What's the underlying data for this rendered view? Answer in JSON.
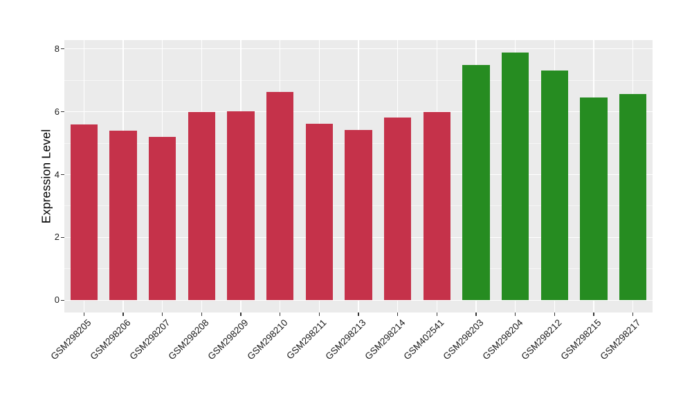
{
  "figure": {
    "background": "#FFFFFF",
    "panel_background": "#EBEBEB",
    "grid_major_color": "#FFFFFF",
    "grid_minor_color": "#F6F6F6",
    "axis_text_color": "#1A1A1A",
    "axis_title_color": "#000000",
    "tick_mark_color": "#333333"
  },
  "chart_data": {
    "type": "bar",
    "title": "",
    "xlabel": "",
    "ylabel": "Expression Level",
    "categories": [
      "GSM298205",
      "GSM298206",
      "GSM298207",
      "GSM298208",
      "GSM298209",
      "GSM298210",
      "GSM298211",
      "GSM298213",
      "GSM298214",
      "GSM402541",
      "GSM298203",
      "GSM298204",
      "GSM298212",
      "GSM298215",
      "GSM298217"
    ],
    "values": [
      5.6,
      5.4,
      5.21,
      6.0,
      6.02,
      6.63,
      5.61,
      5.43,
      5.82,
      6.0,
      7.49,
      7.89,
      7.32,
      6.45,
      6.57
    ],
    "groups": [
      "red",
      "red",
      "red",
      "red",
      "red",
      "red",
      "red",
      "red",
      "red",
      "red",
      "green",
      "green",
      "green",
      "green",
      "green"
    ],
    "group_colors": {
      "red": "#C5324A",
      "green": "#268C21"
    },
    "yticks": [
      0,
      2,
      4,
      6,
      8
    ],
    "yticks_minor": [
      1,
      3,
      5,
      7
    ],
    "ylim": [
      -0.39,
      8.28
    ],
    "bar_width_fraction": 0.7,
    "x_tick_angle": 45,
    "grid": true,
    "legend_position": "none"
  }
}
